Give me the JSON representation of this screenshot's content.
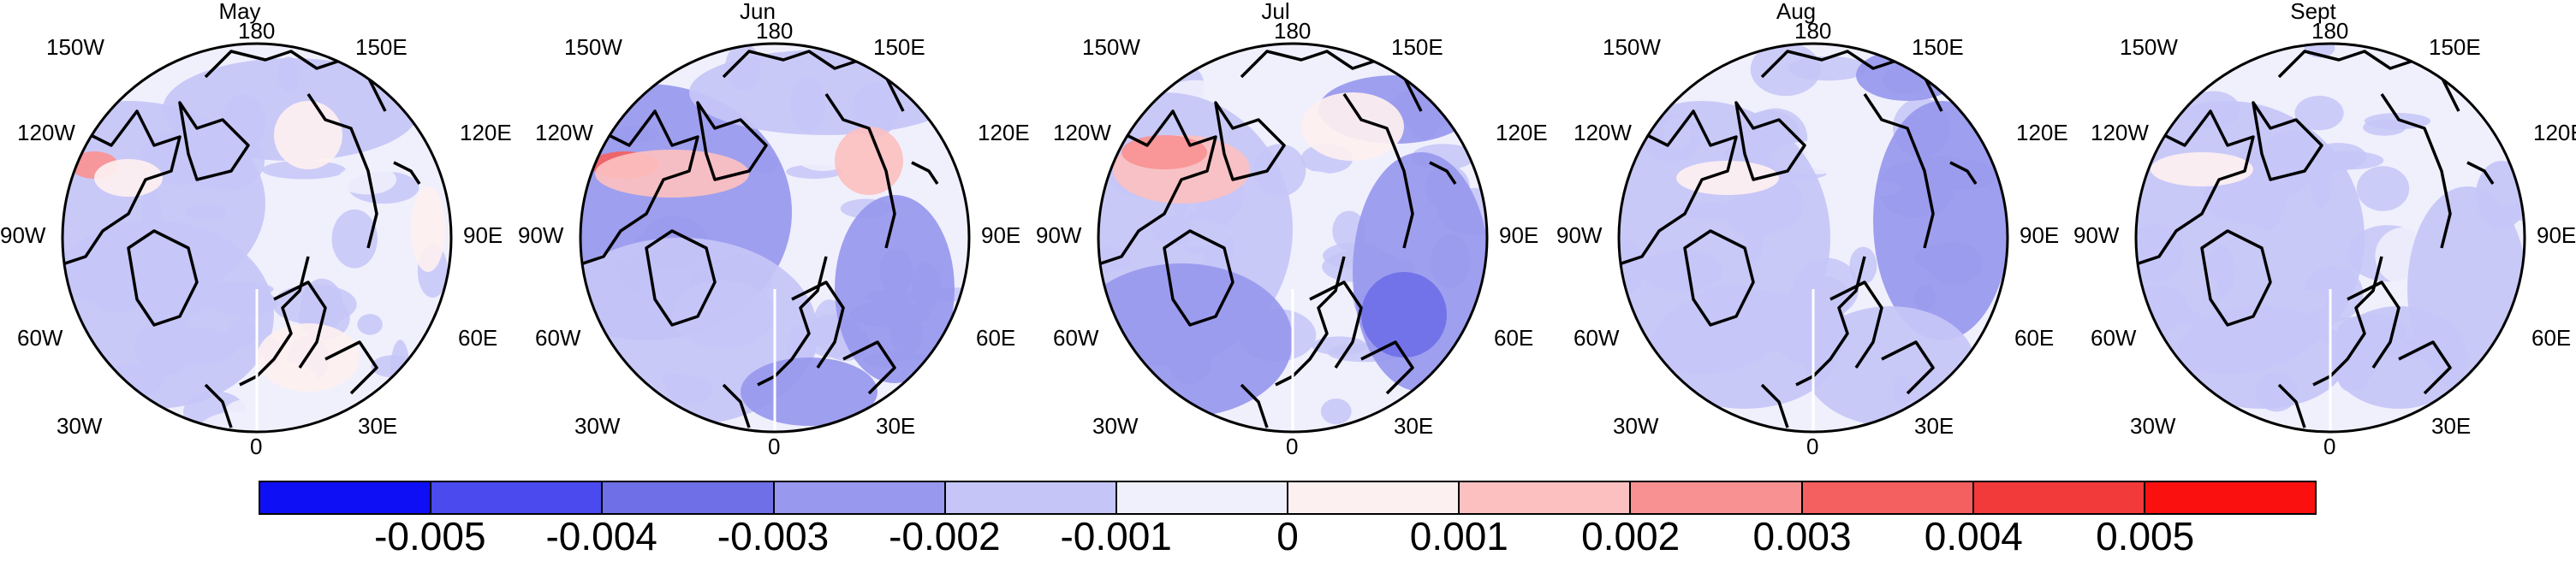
{
  "panels": [
    {
      "title": "May"
    },
    {
      "title": "Jun"
    },
    {
      "title": "Jul"
    },
    {
      "title": "Aug"
    },
    {
      "title": "Sept"
    }
  ],
  "longitude_labels": {
    "top": "180",
    "upper_left": "150W",
    "upper_right": "150E",
    "left_upper": "120W",
    "right_upper": "120E",
    "left": "90W",
    "right": "90E",
    "left_lower": "60W",
    "right_lower": "60E",
    "lower_left": "30W",
    "lower_right": "30E",
    "bottom": "0"
  },
  "colorbar": {
    "colors": [
      "#0f0ff5",
      "#4a4aee",
      "#6f6fe8",
      "#9898ee",
      "#c5c5f7",
      "#f0f0fd",
      "#fdf0f0",
      "#fcc0c0",
      "#f89292",
      "#f45f5f",
      "#f23a3a",
      "#fb1010"
    ],
    "labels": [
      "-0.005",
      "-0.004",
      "-0.003",
      "-0.002",
      "-0.001",
      "0",
      "0.001",
      "0.002",
      "0.003",
      "0.004",
      "0.005"
    ]
  }
}
